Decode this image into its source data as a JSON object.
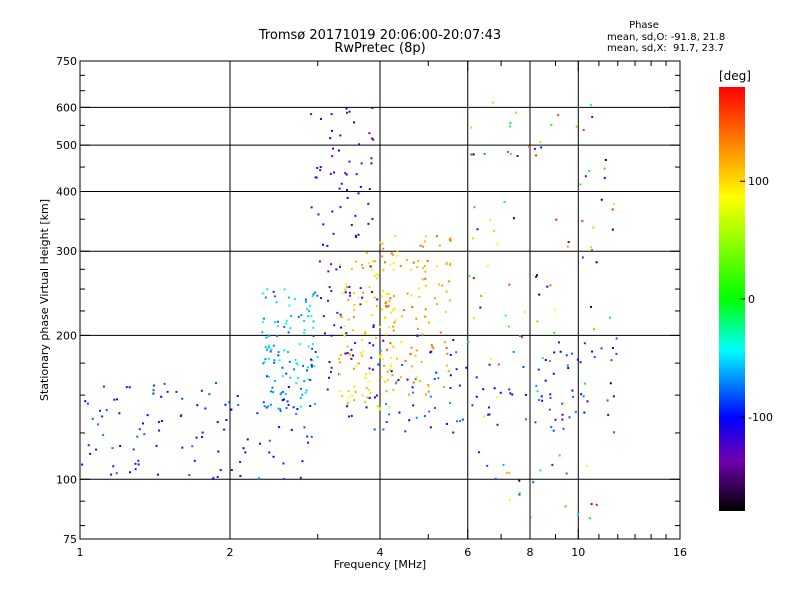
{
  "chart_data": {
    "type": "scatter",
    "title": "Tromsø 20171019 20:06:00-20:07:43",
    "subtitle": "RwPretec (8p)",
    "xlabel": "Frequency [MHz]",
    "ylabel": "Stationary phase Virtual Height [km]",
    "x_scale": "log",
    "y_scale": "log",
    "xlim": [
      1,
      16
    ],
    "ylim": [
      75,
      750
    ],
    "x_ticks": [
      1,
      2,
      4,
      6,
      8,
      10,
      16
    ],
    "x_minor_ticks": [
      3,
      5,
      7,
      9,
      11,
      12,
      13,
      14,
      15
    ],
    "y_ticks": [
      75,
      100,
      200,
      300,
      400,
      500,
      600,
      750
    ],
    "y_minor_ticks": [
      80,
      90,
      125,
      150,
      175,
      225,
      250,
      275,
      350,
      450,
      550,
      650,
      700
    ],
    "grid": true,
    "phase_stats": {
      "title": "Phase",
      "o_line": "mean, sd,O: -91.8, 21.8",
      "x_line": "mean, sd,X:  91.7, 23.7"
    },
    "colorbar": {
      "unit": "[deg]",
      "ticks": [
        100,
        0,
        -100
      ],
      "range": [
        -180,
        180
      ],
      "colors_top_to_bottom": [
        "#ff0000",
        "#ff8000",
        "#ffff00",
        "#00ff00",
        "#00ffff",
        "#0000ff",
        "#7000b0",
        "#000000"
      ]
    },
    "series": [
      {
        "color_hint": "blue",
        "phase_deg": -100,
        "x_range": [
          1.0,
          3.0
        ],
        "y_range": [
          100,
          160
        ]
      },
      {
        "color_hint": "light-blue",
        "phase_deg": -60,
        "x_range": [
          2.3,
          3.0
        ],
        "y_range": [
          140,
          250
        ]
      },
      {
        "color_hint": "dark-blue/purple",
        "phase_deg": -120,
        "x_range": [
          2.9,
          4.0
        ],
        "y_range": [
          130,
          600
        ]
      },
      {
        "color_hint": "yellow",
        "phase_deg": 100,
        "x_range": [
          3.3,
          4.3
        ],
        "y_range": [
          140,
          300
        ]
      },
      {
        "color_hint": "yellow-orange",
        "phase_deg": 120,
        "x_range": [
          4.0,
          5.6
        ],
        "y_range": [
          150,
          330
        ]
      },
      {
        "color_hint": "blue",
        "phase_deg": -95,
        "x_range": [
          3.8,
          12.0
        ],
        "y_range": [
          125,
          200
        ]
      },
      {
        "color_hint": "mixed",
        "phase_deg": 0,
        "x_range": [
          6.0,
          12.0
        ],
        "y_range": [
          80,
          620
        ]
      }
    ]
  }
}
